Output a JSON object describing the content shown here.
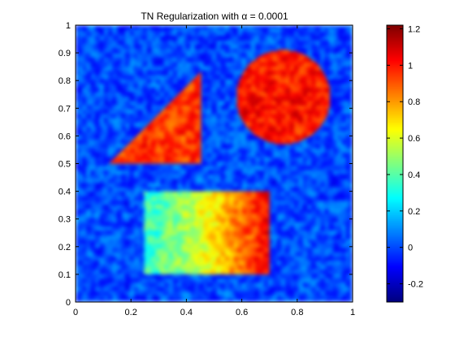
{
  "chart_data": {
    "type": "heatmap",
    "title": "TN Regularization with α = 0.0001",
    "xlabel": "",
    "ylabel": "",
    "xlim": [
      0,
      1
    ],
    "ylim": [
      0,
      1
    ],
    "x_ticks": [
      "0",
      "0.2",
      "0.4",
      "0.6",
      "0.8",
      "1"
    ],
    "y_ticks": [
      "0",
      "0.1",
      "0.2",
      "0.3",
      "0.4",
      "0.5",
      "0.6",
      "0.7",
      "0.8",
      "0.9",
      "1"
    ],
    "colormap": "jet",
    "colorbar": {
      "range": [
        -0.3,
        1.22
      ],
      "ticks": [
        "-0.2",
        "0",
        "0.2",
        "0.4",
        "0.6",
        "0.8",
        "1",
        "1.2"
      ]
    },
    "background_value": 0.0,
    "shapes": [
      {
        "kind": "triangle",
        "vertices": [
          [
            0.12,
            0.5
          ],
          [
            0.45,
            0.5
          ],
          [
            0.45,
            0.83
          ]
        ],
        "value": 0.95
      },
      {
        "kind": "circle",
        "center": [
          0.75,
          0.74
        ],
        "radius": 0.17,
        "value": 1.0
      },
      {
        "kind": "rectangle",
        "x": [
          0.25,
          0.7
        ],
        "y": [
          0.1,
          0.4
        ],
        "value_left": 0.35,
        "value_right": 1.05
      }
    ]
  }
}
